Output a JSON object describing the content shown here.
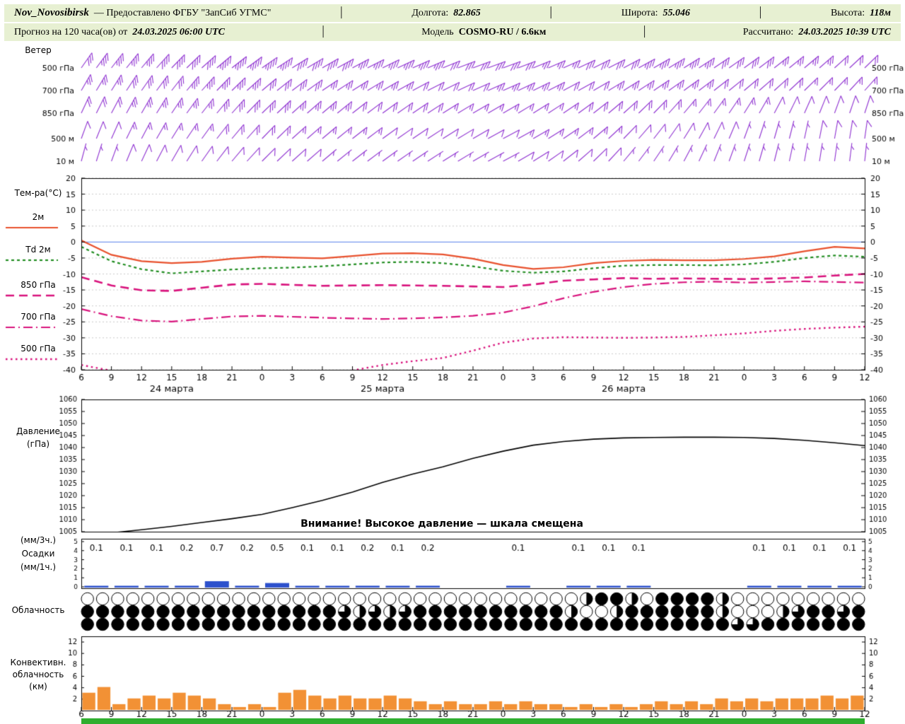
{
  "header": {
    "line1": {
      "station": "Nov_Novosibirsk",
      "provider": "— Предоставлено ФГБУ \"ЗапСиб УГМС\"",
      "lon_label": "Долгота:",
      "lon": "82.865",
      "lat_label": "Широта:",
      "lat": "55.046",
      "alt_label": "Высота:",
      "alt": "118м"
    },
    "line2": {
      "forecast_label": "Прогноз на 120 часа(ов) от",
      "init_time": "24.03.2025 06:00 UTC",
      "model_label": "Модель",
      "model": "COSMO-RU / 6.6км",
      "calc_label": "Рассчитано:",
      "calc_time": "24.03.2025 10:39 UTC"
    }
  },
  "chart_data": {
    "type": "meteogram",
    "colors": {
      "wind_barb": "#8d2fd0",
      "temp_2m": "#e8502c",
      "dewpoint": "#1f8c1f",
      "temp_upper": "#d8127c",
      "pressure": "#000000",
      "precip_bar": "#2d51cc",
      "cloud": "#000000",
      "convective_bar": "#f29135",
      "header_bg": "#e7f0d2",
      "footer_bar": "#2fae2f",
      "zero_line": "#7799ee",
      "grid": "#c9c9c9"
    },
    "x_axis": {
      "hours": [
        "6",
        "9",
        "12",
        "15",
        "18",
        "21",
        "0",
        "3",
        "6",
        "9",
        "12",
        "15",
        "18",
        "21",
        "0",
        "3",
        "6",
        "9",
        "12",
        "15",
        "18",
        "21",
        "0",
        "3",
        "6",
        "9",
        "12"
      ],
      "dates": [
        {
          "label": "24 марта",
          "center_index": 3
        },
        {
          "label": "25 марта",
          "center_index": 10
        },
        {
          "label": "26 марта",
          "center_index": 18
        }
      ]
    },
    "panels": {
      "wind": {
        "title": "Ветер",
        "levels": [
          {
            "label": "500 гПа",
            "dirs": [
              215,
              218,
              220,
              224,
              228,
              232,
              235,
              238,
              240,
              242,
              244,
              246,
              248,
              250,
              250,
              248,
              246,
              244,
              242,
              240,
              238,
              236,
              234,
              232,
              230,
              228,
              226
            ],
            "speeds": [
              30,
              35,
              35,
              40,
              40,
              45,
              45,
              40,
              40,
              35,
              35,
              35,
              30,
              30,
              30,
              25,
              25,
              30,
              30,
              35,
              35,
              30,
              30,
              25,
              25,
              20,
              20
            ]
          },
          {
            "label": "700 гПа",
            "dirs": [
              210,
              212,
              215,
              218,
              222,
              226,
              230,
              233,
              236,
              238,
              240,
              242,
              244,
              246,
              246,
              244,
              242,
              240,
              238,
              236,
              234,
              232,
              230,
              228,
              226,
              224,
              222
            ],
            "speeds": [
              25,
              25,
              30,
              30,
              35,
              35,
              30,
              30,
              25,
              25,
              25,
              20,
              20,
              20,
              25,
              25,
              20,
              20,
              25,
              25,
              25,
              20,
              20,
              20,
              15,
              15,
              15
            ]
          },
          {
            "label": "850 гПа",
            "dirs": [
              205,
              208,
              210,
              214,
              218,
              222,
              226,
              228,
              230,
              232,
              234,
              236,
              238,
              240,
              240,
              238,
              236,
              232,
              228,
              224,
              220,
              216,
              212,
              208,
              204,
              200,
              198
            ],
            "speeds": [
              20,
              20,
              25,
              25,
              25,
              30,
              30,
              25,
              25,
              20,
              20,
              20,
              15,
              15,
              15,
              15,
              15,
              20,
              20,
              20,
              15,
              15,
              15,
              10,
              10,
              10,
              10
            ]
          },
          {
            "label": "500 м",
            "dirs": [
              200,
              204,
              208,
              212,
              216,
              220,
              224,
              228,
              230,
              232,
              234,
              236,
              238,
              240,
              242,
              240,
              236,
              230,
              224,
              218,
              212,
              206,
              200,
              196,
              192,
              190,
              188
            ],
            "speeds": [
              10,
              10,
              15,
              15,
              15,
              20,
              20,
              15,
              15,
              15,
              10,
              10,
              10,
              10,
              10,
              15,
              15,
              15,
              10,
              10,
              10,
              10,
              5,
              5,
              5,
              10,
              10
            ]
          },
          {
            "label": "10 м",
            "dirs": [
              195,
              200,
              205,
              210,
              215,
              220,
              225,
              228,
              230,
              232,
              234,
              236,
              238,
              240,
              242,
              238,
              232,
              226,
              220,
              214,
              208,
              202,
              198,
              194,
              190,
              188,
              186
            ],
            "speeds": [
              5,
              5,
              10,
              10,
              10,
              10,
              10,
              10,
              5,
              5,
              5,
              5,
              5,
              5,
              5,
              10,
              10,
              10,
              5,
              5,
              5,
              5,
              5,
              5,
              5,
              5,
              5
            ]
          }
        ]
      },
      "temperature": {
        "title": "Тем-ра(°C)",
        "ylim": [
          -40,
          20
        ],
        "ticks": [
          20,
          15,
          10,
          5,
          0,
          -5,
          -10,
          -15,
          -20,
          -25,
          -30,
          -35,
          -40
        ],
        "series": [
          {
            "name": "2м",
            "color": "#e8502c",
            "dash": [],
            "width": 2.2,
            "values": [
              0.5,
              -4,
              -6,
              -6.6,
              -6.2,
              -5.2,
              -4.6,
              -4.9,
              -5.1,
              -4.4,
              -3.6,
              -3.5,
              -3.9,
              -5.2,
              -7.2,
              -8.4,
              -7.9,
              -6.6,
              -5.9,
              -5.6,
              -5.7,
              -5.7,
              -5.3,
              -4.5,
              -2.9,
              -1.5,
              -2.0
            ]
          },
          {
            "name": "Td 2м",
            "color": "#1f8c1f",
            "dash": [
              4,
              4
            ],
            "width": 2.2,
            "values": [
              -1.5,
              -6,
              -8.5,
              -9.8,
              -9.2,
              -8.6,
              -8.2,
              -8.0,
              -7.6,
              -7.0,
              -6.4,
              -6.2,
              -6.6,
              -7.6,
              -9.0,
              -9.6,
              -9.2,
              -8.2,
              -7.4,
              -7.2,
              -7.2,
              -7.3,
              -7.0,
              -6.2,
              -5.0,
              -4.2,
              -4.6
            ]
          },
          {
            "name": "850 гПа",
            "color": "#d8127c",
            "dash": [
              12,
              7
            ],
            "width": 2.6,
            "values": [
              -11,
              -13.6,
              -15.1,
              -15.3,
              -14.3,
              -13.3,
              -13.1,
              -13.4,
              -13.7,
              -13.6,
              -13.5,
              -13.6,
              -13.7,
              -13.9,
              -14.1,
              -13.3,
              -12.1,
              -11.7,
              -11.3,
              -11.5,
              -11.4,
              -11.5,
              -11.6,
              -11.4,
              -11.1,
              -10.5,
              -10.0
            ]
          },
          {
            "name": "700 гПа",
            "color": "#d8127c",
            "dash": [
              13,
              5,
              2,
              5
            ],
            "width": 2.2,
            "values": [
              -21,
              -23.2,
              -24.6,
              -24.9,
              -24.1,
              -23.3,
              -23.1,
              -23.4,
              -23.7,
              -23.9,
              -24.1,
              -23.9,
              -23.6,
              -23.1,
              -22.1,
              -20.1,
              -17.6,
              -15.6,
              -14.1,
              -13.1,
              -12.6,
              -12.4,
              -12.7,
              -12.5,
              -12.3,
              -12.5,
              -12.7
            ]
          },
          {
            "name": "500 гПа",
            "color": "#d8127c",
            "dash": [
              2.5,
              4.5
            ],
            "width": 2.4,
            "values": [
              -38.5,
              -40.3,
              -42,
              -43,
              -43,
              -42.5,
              -42,
              -41.5,
              -41,
              -40.2,
              -38.5,
              -37.3,
              -36.3,
              -34.0,
              -31.5,
              -30.2,
              -29.8,
              -29.9,
              -30.0,
              -29.9,
              -29.7,
              -29.2,
              -28.6,
              -27.8,
              -27.2,
              -26.8,
              -26.5
            ]
          }
        ]
      },
      "pressure": {
        "title": "Давление",
        "units": "(гПа)",
        "ylim": [
          1005,
          1060
        ],
        "ticks": [
          1060,
          1055,
          1050,
          1045,
          1040,
          1035,
          1030,
          1025,
          1020,
          1015,
          1010,
          1005
        ],
        "annotation": "Внимание! Высокое давление — шкала смещена",
        "values": [
          1003.5,
          1004.5,
          1005.8,
          1007.2,
          1008.8,
          1010.4,
          1012.2,
          1015,
          1018,
          1021.5,
          1025.5,
          1029,
          1032,
          1035.5,
          1038.5,
          1041,
          1042.5,
          1043.5,
          1044,
          1044.2,
          1044.3,
          1044.3,
          1044.2,
          1043.8,
          1043,
          1042,
          1040.8
        ]
      },
      "precip": {
        "labels": [
          "(мм/3ч.)",
          "Осадки",
          "(мм/1ч.)"
        ],
        "ylim": [
          0,
          5
        ],
        "ticks": [
          5,
          4,
          3,
          2,
          1,
          0
        ],
        "values_3h": [
          0.1,
          0.1,
          0.1,
          0.2,
          0.7,
          0.2,
          0.5,
          0.1,
          0.1,
          0.2,
          0.1,
          0.2,
          null,
          null,
          0.1,
          null,
          0.1,
          0.1,
          0.1,
          null,
          null,
          null,
          0.1,
          0.1,
          0.1,
          0.1
        ]
      },
      "cloud": {
        "title": "Облачность",
        "rows": [
          [
            0,
            0,
            0,
            0,
            0,
            0,
            0,
            0,
            0,
            0,
            0,
            0,
            0,
            0,
            0,
            0,
            0,
            0,
            0,
            0,
            0,
            0,
            0,
            0,
            0,
            0,
            0,
            0,
            0,
            0,
            0,
            0,
            0,
            0.5,
            1,
            1,
            0.5,
            0,
            1,
            1,
            1,
            1,
            0.5,
            0,
            0,
            0,
            0,
            0,
            0,
            0,
            0,
            0
          ],
          [
            1,
            1,
            1,
            1,
            1,
            1,
            1,
            1,
            1,
            1,
            1,
            1,
            1,
            1,
            1,
            1,
            1,
            0.75,
            0.5,
            0.75,
            0.5,
            0.75,
            1,
            1,
            1,
            1,
            1,
            1,
            1,
            1,
            1,
            1,
            0.5,
            0,
            0,
            0.5,
            1,
            1,
            1,
            1,
            1,
            1,
            0.5,
            0,
            0,
            0,
            0.5,
            0.75,
            1,
            1,
            0.75,
            1
          ],
          [
            1,
            1,
            1,
            1,
            1,
            1,
            1,
            1,
            1,
            1,
            1,
            1,
            1,
            1,
            1,
            1,
            1,
            1,
            1,
            1,
            1,
            1,
            1,
            1,
            1,
            1,
            1,
            1,
            1,
            1,
            1,
            1,
            1,
            1,
            1,
            1,
            1,
            1,
            1,
            1,
            1,
            1,
            1,
            0.75,
            0.75,
            1,
            1,
            1,
            1,
            1,
            1,
            1
          ]
        ]
      },
      "convective": {
        "title_lines": [
          "Конвективн.",
          "облачность",
          "(км)"
        ],
        "ylim": [
          0,
          12
        ],
        "ticks": [
          12,
          10,
          8,
          6,
          4,
          2
        ],
        "values": [
          3,
          4,
          1,
          2,
          2.5,
          2,
          3,
          2.5,
          2,
          1,
          0.5,
          1,
          0.5,
          3,
          3.5,
          2.5,
          2,
          2.5,
          2,
          2,
          2.5,
          2,
          1.5,
          1,
          1.5,
          1,
          1,
          1.5,
          1,
          1.5,
          1,
          1,
          0.5,
          1,
          0.5,
          1,
          0.5,
          1,
          1.5,
          1,
          1.5,
          1,
          2,
          1.5,
          2,
          1.5,
          2,
          2,
          2,
          2.5,
          2,
          2.5
        ]
      }
    }
  }
}
